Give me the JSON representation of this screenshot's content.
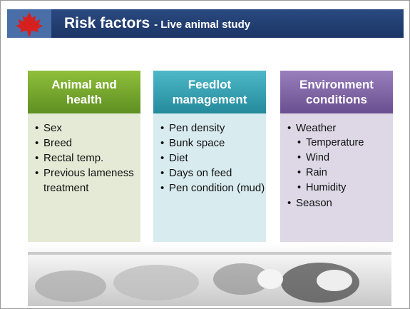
{
  "header": {
    "title": "Risk factors",
    "subtitle": "- Live animal study"
  },
  "columns": [
    {
      "heading": "Animal and health",
      "items": [
        {
          "text": "Sex"
        },
        {
          "text": "Breed"
        },
        {
          "text": "Rectal temp."
        },
        {
          "text": "Previous lameness treatment"
        }
      ]
    },
    {
      "heading": "Feedlot management",
      "items": [
        {
          "text": "Pen density"
        },
        {
          "text": "Bunk space"
        },
        {
          "text": "Diet"
        },
        {
          "text": "Days on  feed"
        },
        {
          "text": "Pen condition (mud)"
        }
      ]
    },
    {
      "heading": "Environment conditions",
      "items": [
        {
          "text": "Weather",
          "items": [
            {
              "text": "Temperature"
            },
            {
              "text": "Wind"
            },
            {
              "text": "Rain"
            },
            {
              "text": "Humidity"
            }
          ]
        },
        {
          "text": "Season"
        }
      ]
    }
  ]
}
